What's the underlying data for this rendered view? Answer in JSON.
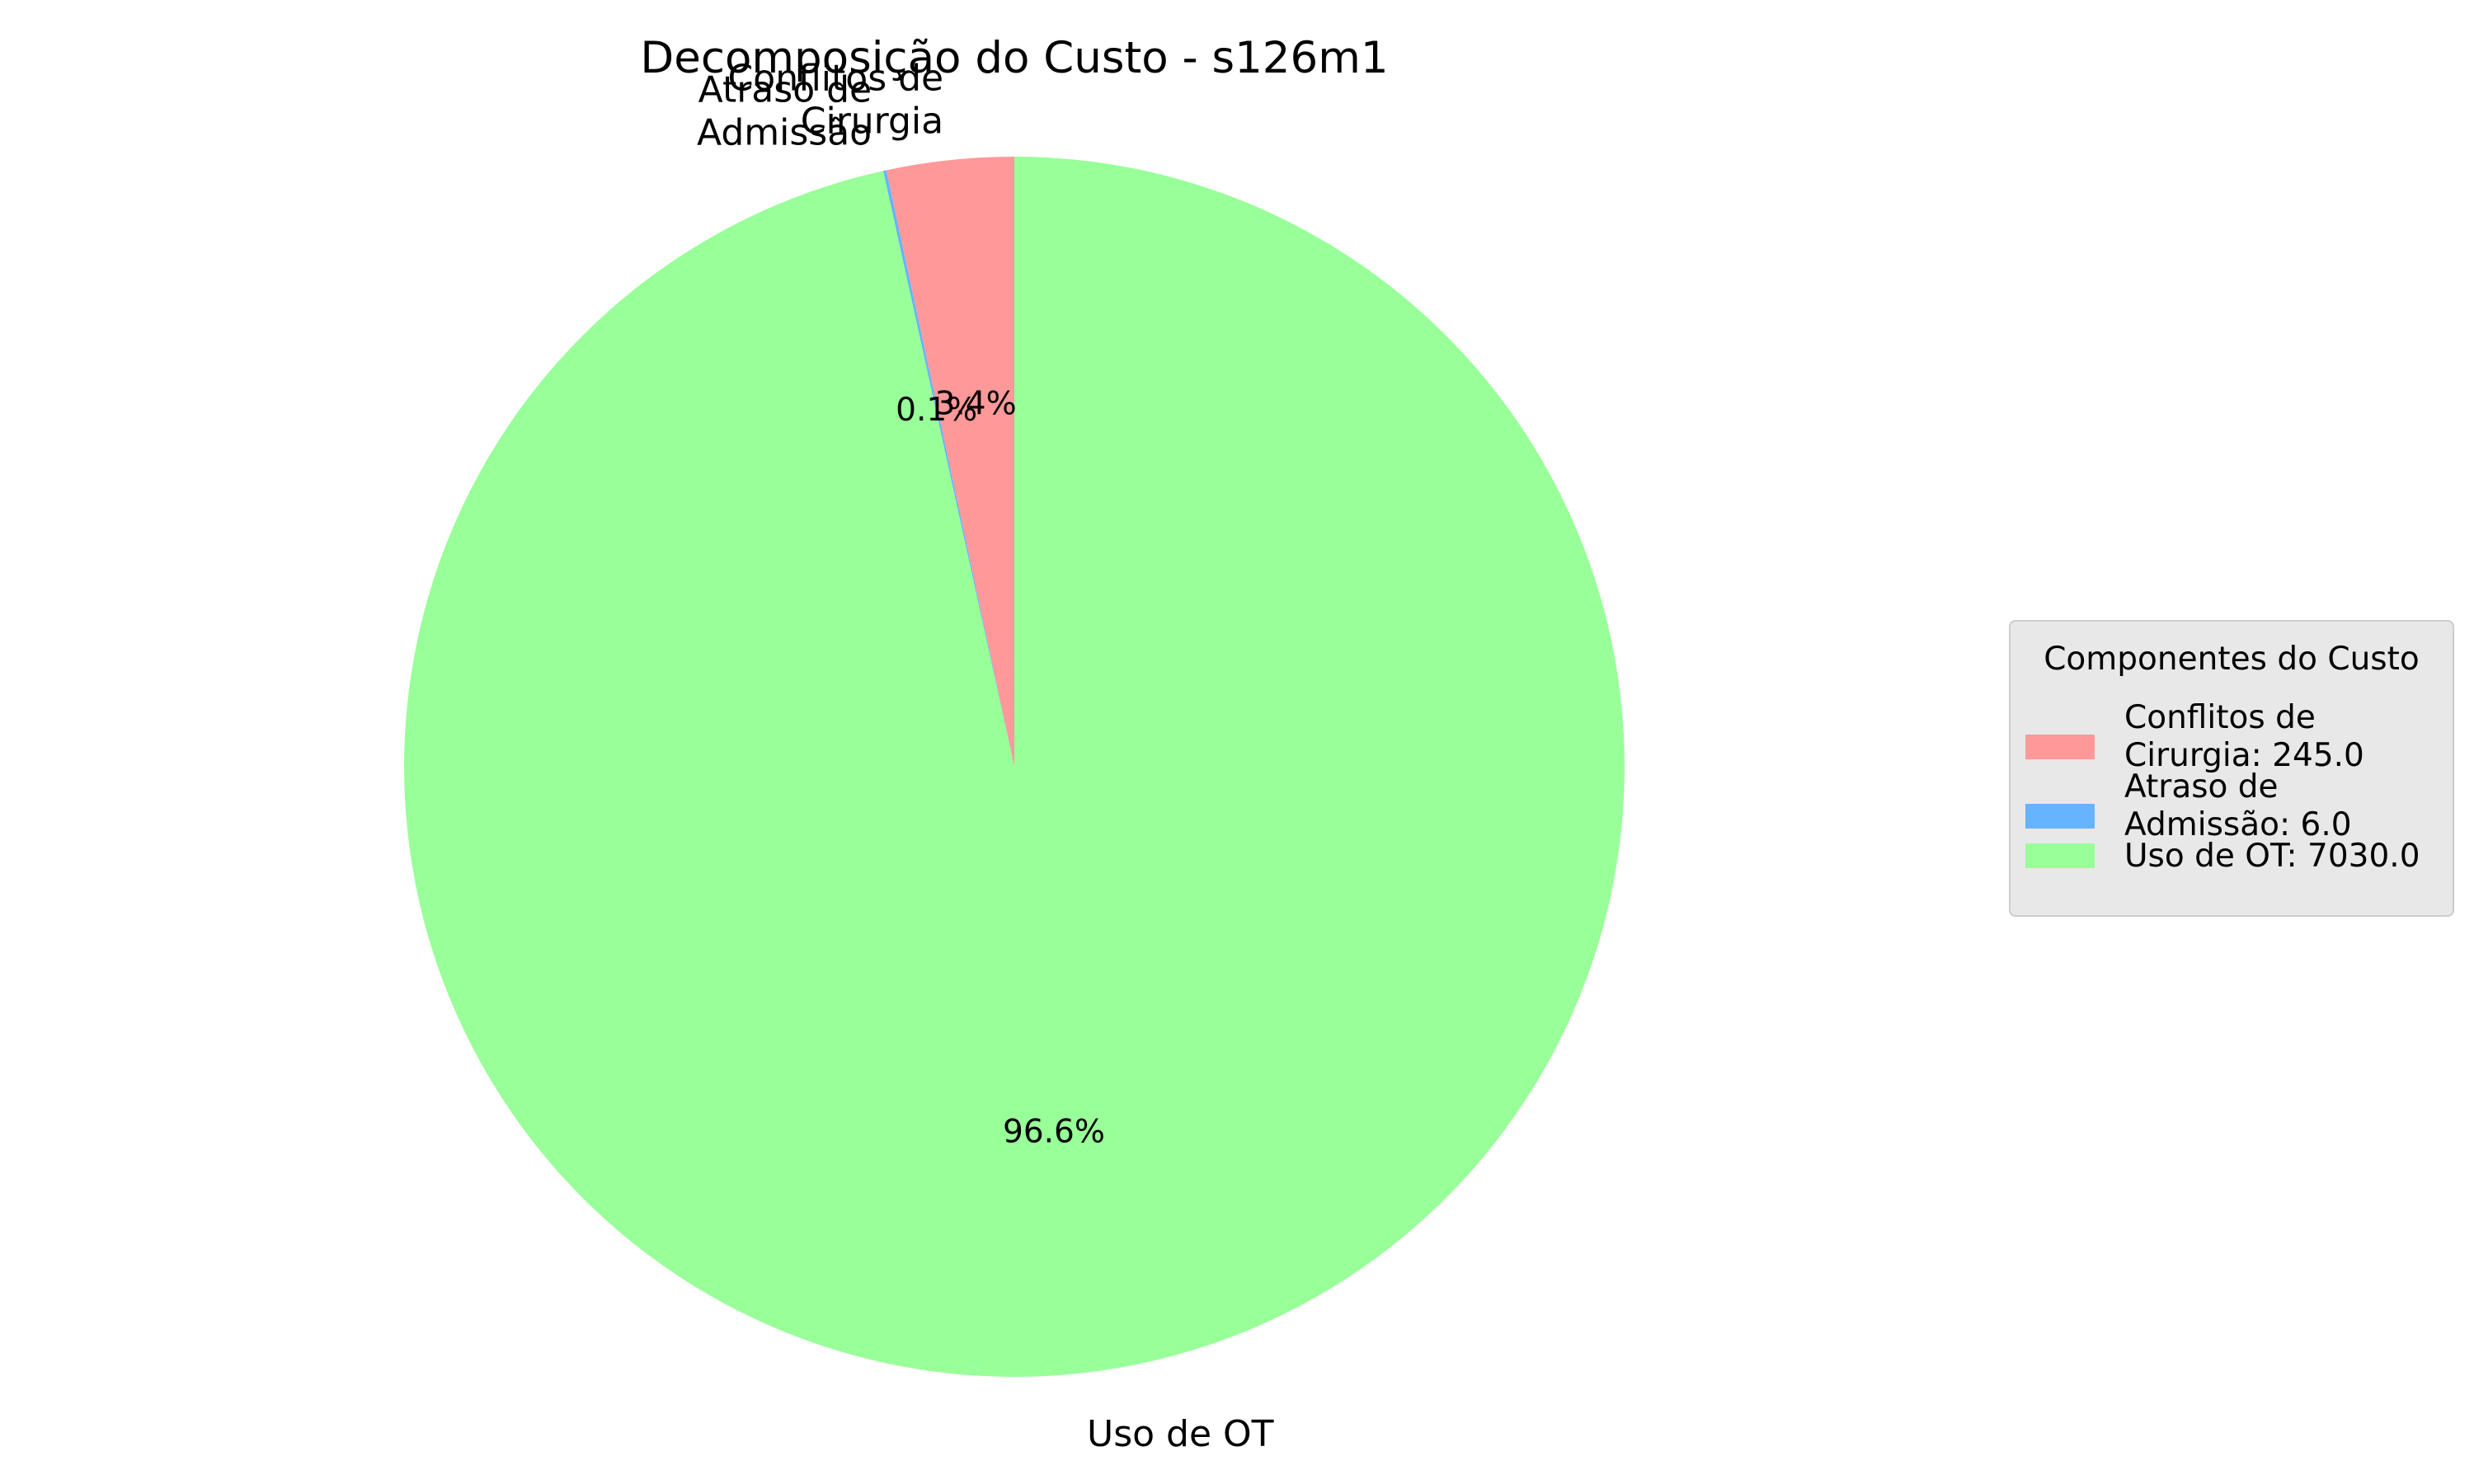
{
  "chart_data": {
    "type": "pie",
    "title": "Decomposição do Custo - s126m1",
    "categories": [
      "Conflitos de\nCirurgia",
      "Atraso de\nAdmissão",
      "Uso de OT"
    ],
    "values": [
      245.0,
      6.0,
      7030.0
    ],
    "autopct_labels": [
      "3.4%",
      "0.1%",
      "96.6%"
    ],
    "colors": [
      "#ff9999",
      "#66b3ff",
      "#99ff99"
    ],
    "start_angle_deg": 90,
    "direction": "counterclockwise",
    "legend": {
      "title": "Componentes do Custo",
      "placement": "center-right",
      "entries": [
        "Conflitos de\nCirurgia: 245.0",
        "Atraso de\nAdmissão: 6.0",
        "Uso de OT: 7030.0"
      ]
    }
  }
}
